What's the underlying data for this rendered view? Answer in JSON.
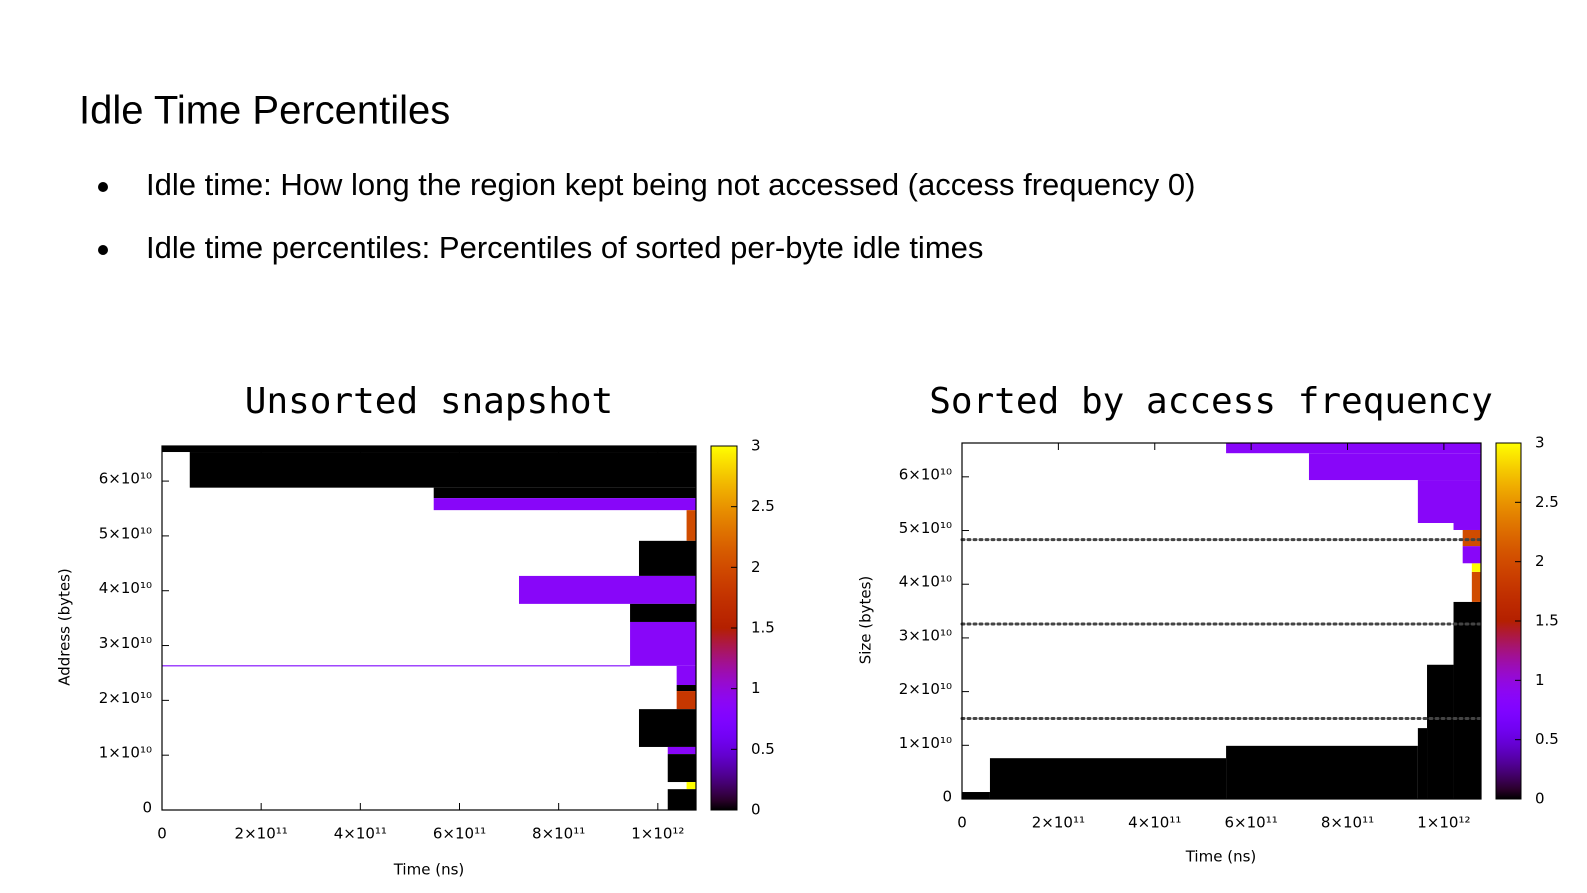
{
  "header": {
    "title": "Idle Time Percentiles"
  },
  "bullets": [
    "Idle time: How long the region kept being not accessed (access frequency 0)",
    "Idle time percentiles: Percentiles of sorted per-byte idle times"
  ],
  "chart_data": [
    {
      "type": "heatmap",
      "title": "Unsorted snapshot",
      "x_label": "Time (ns)",
      "y_label": "Address (bytes)",
      "xlim": [
        0,
        1077000000000.0
      ],
      "ylim": [
        0,
        66400000000.0
      ],
      "cblim": [
        0,
        3
      ],
      "xticks": [
        0,
        {
          "value": 200000000000.0,
          "label": "2×10¹¹"
        },
        {
          "value": 400000000000.0,
          "label": "4×10¹¹"
        },
        {
          "value": 600000000000.0,
          "label": "6×10¹¹"
        },
        {
          "value": 800000000000.0,
          "label": "8×10¹¹"
        },
        {
          "value": 1000000000000.0,
          "label": "1×10¹²"
        }
      ],
      "yticks": [
        0,
        {
          "value": 10000000000.0,
          "label": "1×10¹⁰"
        },
        {
          "value": 20000000000.0,
          "label": "2×10¹⁰"
        },
        {
          "value": 30000000000.0,
          "label": "3×10¹⁰"
        },
        {
          "value": 40000000000.0,
          "label": "4×10¹⁰"
        },
        {
          "value": 50000000000.0,
          "label": "5×10¹⁰"
        },
        {
          "value": 60000000000.0,
          "label": "6×10¹⁰"
        }
      ],
      "cbticks": [
        0,
        0.5,
        1,
        1.5,
        2,
        2.5,
        3
      ],
      "rects": [
        {
          "x": [
            0,
            1077000000000.0
          ],
          "y": [
            65300000000.0,
            66400000000.0
          ],
          "value": 0
        },
        {
          "x": [
            56000000000.0,
            1077000000000.0
          ],
          "y": [
            58800000000.0,
            65300000000.0
          ],
          "value": 0
        },
        {
          "x": [
            548000000000.0,
            1077000000000.0
          ],
          "y": [
            56900000000.0,
            58800000000.0
          ],
          "value": 0
        },
        {
          "x": [
            548000000000.0,
            1077000000000.0
          ],
          "y": [
            54700000000.0,
            56900000000.0
          ],
          "value": 0.85
        },
        {
          "x": [
            1058000000000.0,
            1077000000000.0
          ],
          "y": [
            49100000000.0,
            54700000000.0
          ],
          "value": 2
        },
        {
          "x": [
            962000000000.0,
            1077000000000.0
          ],
          "y": [
            42700000000.0,
            49100000000.0
          ],
          "value": 0
        },
        {
          "x": [
            720000000000.0,
            1077000000000.0
          ],
          "y": [
            37600000000.0,
            42700000000.0
          ],
          "value": 0.85
        },
        {
          "x": [
            944000000000.0,
            1077000000000.0
          ],
          "y": [
            34300000000.0,
            37600000000.0
          ],
          "value": 0
        },
        {
          "x": [
            944000000000.0,
            1077000000000.0
          ],
          "y": [
            26300000000.0,
            34300000000.0
          ],
          "value": 0.85
        },
        {
          "x": [
            0,
            944000000000.0
          ],
          "y": [
            26200000000.0,
            26400000000.0
          ],
          "value": 0.7
        },
        {
          "x": [
            1038000000000.0,
            1077000000000.0
          ],
          "y": [
            22800000000.0,
            26300000000.0
          ],
          "value": 0.85
        },
        {
          "x": [
            1038000000000.0,
            1077000000000.0
          ],
          "y": [
            21700000000.0,
            22800000000.0
          ],
          "value": 0
        },
        {
          "x": [
            1038000000000.0,
            1077000000000.0
          ],
          "y": [
            18400000000.0,
            21700000000.0
          ],
          "value": 1.8
        },
        {
          "x": [
            962000000000.0,
            1077000000000.0
          ],
          "y": [
            11500000000.0,
            18400000000.0
          ],
          "value": 0
        },
        {
          "x": [
            1020000000000.0,
            1077000000000.0
          ],
          "y": [
            10200000000.0,
            11500000000.0
          ],
          "value": 0.85
        },
        {
          "x": [
            1020000000000.0,
            1077000000000.0
          ],
          "y": [
            5100000000.0,
            10200000000.0
          ],
          "value": 0
        },
        {
          "x": [
            1058000000000.0,
            1077000000000.0
          ],
          "y": [
            3800000000.0,
            5100000000.0
          ],
          "value": 3
        },
        {
          "x": [
            1020000000000.0,
            1077000000000.0
          ],
          "y": [
            0,
            3800000000.0
          ],
          "value": 0
        }
      ]
    },
    {
      "type": "heatmap",
      "title": "Sorted by access frequency",
      "x_label": "Time (ns)",
      "y_label": "Size (bytes)",
      "xlim": [
        0,
        1077000000000.0
      ],
      "ylim": [
        0,
        66300000000.0
      ],
      "cblim": [
        0,
        3
      ],
      "xticks": [
        0,
        {
          "value": 200000000000.0,
          "label": "2×10¹¹"
        },
        {
          "value": 400000000000.0,
          "label": "4×10¹¹"
        },
        {
          "value": 600000000000.0,
          "label": "6×10¹¹"
        },
        {
          "value": 800000000000.0,
          "label": "8×10¹¹"
        },
        {
          "value": 1000000000000.0,
          "label": "1×10¹²"
        }
      ],
      "yticks": [
        0,
        {
          "value": 10000000000.0,
          "label": "1×10¹⁰"
        },
        {
          "value": 20000000000.0,
          "label": "2×10¹⁰"
        },
        {
          "value": 30000000000.0,
          "label": "3×10¹⁰"
        },
        {
          "value": 40000000000.0,
          "label": "4×10¹⁰"
        },
        {
          "value": 50000000000.0,
          "label": "5×10¹⁰"
        },
        {
          "value": 60000000000.0,
          "label": "6×10¹⁰"
        }
      ],
      "cbticks": [
        0,
        0.5,
        1,
        1.5,
        2,
        2.5,
        3
      ],
      "hlines": [
        48300000000.0,
        32600000000.0,
        15000000000.0
      ],
      "rects": [
        {
          "x": [
            0,
            58000000000.0
          ],
          "y": [
            0,
            1300000000.0
          ],
          "value": 0
        },
        {
          "x": [
            58000000000.0,
            548000000000.0
          ],
          "y": [
            0,
            7600000000.0
          ],
          "value": 0
        },
        {
          "x": [
            548000000000.0,
            946000000000.0
          ],
          "y": [
            0,
            9900000000.0
          ],
          "value": 0
        },
        {
          "x": [
            946000000000.0,
            965000000000.0
          ],
          "y": [
            0,
            13200000000.0
          ],
          "value": 0
        },
        {
          "x": [
            965000000000.0,
            1020000000000.0
          ],
          "y": [
            0,
            25000000000.0
          ],
          "value": 0
        },
        {
          "x": [
            1020000000000.0,
            1077000000000.0
          ],
          "y": [
            0,
            36700000000.0
          ],
          "value": 0
        },
        {
          "x": [
            1058000000000.0,
            1077000000000.0
          ],
          "y": [
            36700000000.0,
            42300000000.0
          ],
          "value": 2
        },
        {
          "x": [
            1058000000000.0,
            1077000000000.0
          ],
          "y": [
            42300000000.0,
            43900000000.0
          ],
          "value": 3
        },
        {
          "x": [
            1039000000000.0,
            1077000000000.0
          ],
          "y": [
            43900000000.0,
            47100000000.0
          ],
          "value": 0.85
        },
        {
          "x": [
            1039000000000.0,
            1077000000000.0
          ],
          "y": [
            47100000000.0,
            50100000000.0
          ],
          "value": 2
        },
        {
          "x": [
            1020000000000.0,
            1077000000000.0
          ],
          "y": [
            50100000000.0,
            51400000000.0
          ],
          "value": 0.85
        },
        {
          "x": [
            946000000000.0,
            1077000000000.0
          ],
          "y": [
            51400000000.0,
            59400000000.0
          ],
          "value": 0.85
        },
        {
          "x": [
            720000000000.0,
            1077000000000.0
          ],
          "y": [
            59400000000.0,
            64400000000.0
          ],
          "value": 0.85
        },
        {
          "x": [
            548000000000.0,
            1077000000000.0
          ],
          "y": [
            64400000000.0,
            66300000000.0
          ],
          "value": 0.85
        }
      ]
    }
  ]
}
